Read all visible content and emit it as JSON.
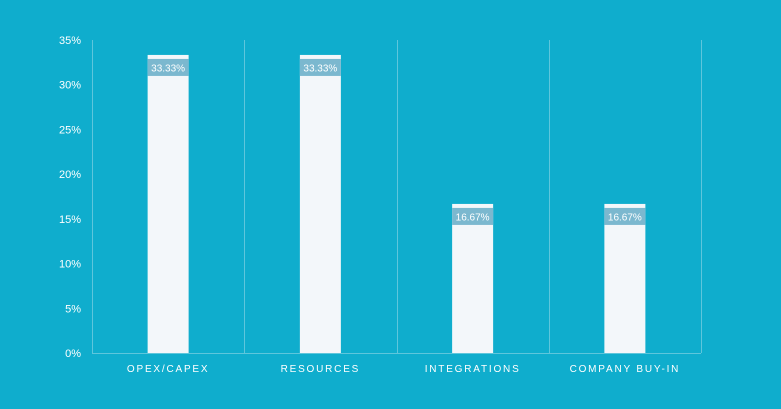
{
  "chart_data": {
    "type": "bar",
    "categories": [
      "OPEX/CAPEX",
      "RESOURCES",
      "INTEGRATIONS",
      "COMPANY BUY-IN"
    ],
    "values": [
      33.33,
      33.33,
      16.67,
      16.67
    ],
    "data_labels": [
      "33.33%",
      "33.33%",
      "16.67%",
      "16.67%"
    ],
    "ylim": [
      0,
      35
    ],
    "yticks": [
      0,
      5,
      10,
      15,
      20,
      25,
      30,
      35
    ],
    "ytick_labels": [
      "0%",
      "5%",
      "10%",
      "15%",
      "20%",
      "25%",
      "30%",
      "35%"
    ],
    "grid": "vertical",
    "legend": "none",
    "colors": {
      "background": "#0fadcd",
      "bar": "#f3f7fa",
      "label_box": "#7bb8cf",
      "grid": "#5ec6dc",
      "text": "#ffffff"
    }
  }
}
